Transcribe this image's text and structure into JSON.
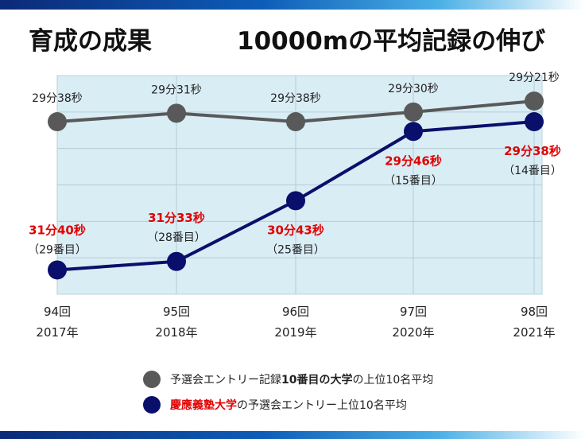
{
  "header": {
    "left_title": "育成の成果",
    "right_title": "10000mの平均記録の伸び"
  },
  "colors": {
    "plot_bg": "#d9edf5",
    "gray_series": "#595959",
    "navy_series": "#0a0f6b",
    "highlight_red": "#e00000"
  },
  "chart_data": {
    "type": "line",
    "title": "10000mの平均記録の伸び",
    "categories": [
      [
        "94回",
        "2017年"
      ],
      [
        "95回",
        "2018年"
      ],
      [
        "96回",
        "2019年"
      ],
      [
        "97回",
        "2020年"
      ],
      [
        "98回",
        "2021年"
      ]
    ],
    "ylim_seconds": [
      1740,
      1920
    ],
    "y_reversed": true,
    "grid": true,
    "y_tick_labels_visible": false,
    "series": [
      {
        "name": "予選会エントリー記録10番目の大学の上位10名平均",
        "color": "#595959",
        "values_seconds": [
          1778,
          1771,
          1778,
          1770,
          1761
        ],
        "labels": [
          "29分38秒",
          "29分31秒",
          "29分38秒",
          "29分30秒",
          "29分21秒"
        ]
      },
      {
        "name": "慶應義塾大学の予選会エントリー上位10名平均",
        "color": "#0a0f6b",
        "values_seconds": [
          1900,
          1893,
          1843,
          1786,
          1778
        ],
        "labels": [
          "31分40秒",
          "31分33秒",
          "30分43秒",
          "29分46秒",
          "29分38秒"
        ],
        "rank_labels": [
          "（29番目）",
          "（28番目）",
          "（25番目）",
          "（15番目）",
          "（14番目）"
        ]
      }
    ]
  },
  "legend": {
    "gray_prefix": "予選会エントリー記録",
    "gray_bold": "10番目の大学",
    "gray_suffix": "の上位10名平均",
    "navy_bold": "慶應義塾大学",
    "navy_suffix": "の予選会エントリー上位10名平均"
  }
}
